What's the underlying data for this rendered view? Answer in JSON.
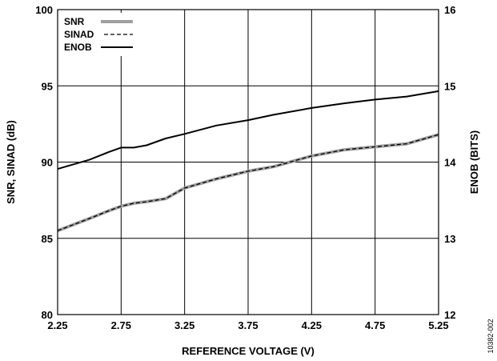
{
  "chart_data": {
    "type": "line",
    "title": "",
    "xlabel": "REFERENCE VOLTAGE (V)",
    "ylabel": "SNR, SINAD (dB)",
    "y2label": "ENOB (BITS)",
    "xlim": [
      2.25,
      5.25
    ],
    "ylim": [
      80,
      100
    ],
    "y2lim": [
      12,
      16
    ],
    "x_ticks": [
      "2.25",
      "2.75",
      "3.25",
      "3.75",
      "4.25",
      "4.75",
      "5.25"
    ],
    "y_ticks": [
      "80",
      "85",
      "90",
      "95",
      "100"
    ],
    "y2_ticks": [
      "12",
      "13",
      "14",
      "15",
      "16"
    ],
    "grid": true,
    "legend_position": "top-left",
    "x": [
      2.25,
      2.5,
      2.65,
      2.75,
      2.85,
      2.95,
      3.1,
      3.25,
      3.5,
      3.75,
      3.95,
      4.25,
      4.5,
      4.75,
      5.0,
      5.25
    ],
    "series": [
      {
        "name": "SNR",
        "axis": "left",
        "color": "#a0a0a0",
        "dash": "solid",
        "values": [
          85.5,
          86.3,
          86.8,
          87.1,
          87.3,
          87.4,
          87.6,
          88.3,
          88.9,
          89.4,
          89.7,
          90.4,
          90.8,
          91.0,
          91.2,
          91.8
        ]
      },
      {
        "name": "SINAD",
        "axis": "left",
        "color": "#000000",
        "dash": "dashed",
        "values": [
          85.5,
          86.3,
          86.8,
          87.1,
          87.3,
          87.4,
          87.6,
          88.3,
          88.9,
          89.4,
          89.7,
          90.4,
          90.8,
          91.0,
          91.2,
          91.8
        ]
      },
      {
        "name": "ENOB",
        "axis": "right",
        "color": "#000000",
        "dash": "solid",
        "values": [
          13.91,
          14.03,
          14.13,
          14.19,
          14.19,
          14.22,
          14.31,
          14.37,
          14.48,
          14.55,
          14.62,
          14.71,
          14.77,
          14.82,
          14.86,
          14.93
        ]
      }
    ],
    "figure_id": "10382-002"
  }
}
